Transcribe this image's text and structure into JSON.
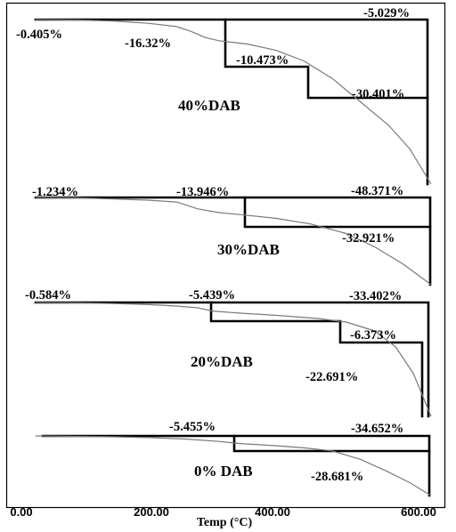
{
  "chart_data": {
    "type": "line",
    "xlabel": "Temp (°C)",
    "xlim": [
      0,
      600
    ],
    "x_ticks": [
      "0.00",
      "200.00",
      "400.00",
      "600.00"
    ],
    "series": [
      {
        "name": "40%DAB",
        "x": [
          40,
          100,
          150,
          200,
          240,
          260,
          280,
          300,
          340,
          380,
          420,
          460,
          500,
          540,
          570,
          600
        ],
        "y": [
          100,
          99.9,
          99.7,
          99.2,
          98.5,
          97.5,
          96.2,
          95.5,
          94.8,
          93.5,
          91.2,
          87.5,
          82.5,
          77.5,
          72.5,
          65
        ],
        "step_labels": [
          "-0.405%",
          "-16.32%",
          "-10.473%",
          "-30.401%",
          "-5.029%"
        ]
      },
      {
        "name": "30%DAB",
        "x": [
          40,
          100,
          150,
          200,
          240,
          270,
          300,
          330,
          380,
          430,
          480,
          520,
          560,
          600
        ],
        "y": [
          100,
          99.9,
          99.6,
          99.3,
          98.8,
          97,
          96,
          95.5,
          94.5,
          93,
          90.5,
          87,
          82.5,
          77
        ],
        "step_labels": [
          "-1.234%",
          "-13.946%",
          "-48.371%",
          "-32.921%"
        ]
      },
      {
        "name": "20%DAB",
        "x": [
          40,
          100,
          150,
          200,
          240,
          270,
          290,
          330,
          380,
          440,
          480,
          520,
          550,
          575,
          600
        ],
        "y": [
          100,
          99.9,
          99.7,
          99.4,
          99,
          98.5,
          97.6,
          97,
          96.4,
          95.5,
          94.5,
          92,
          87.5,
          80,
          68
        ],
        "step_labels": [
          "-0.584%",
          "-5.439%",
          "-33.402%",
          "-6.373%",
          "-22.691%"
        ]
      },
      {
        "name": "0% DAB",
        "x": [
          40,
          100,
          150,
          200,
          250,
          300,
          330,
          380,
          420,
          460,
          500,
          540,
          570,
          600
        ],
        "y": [
          100,
          99.9,
          99.8,
          99.6,
          99.3,
          98.7,
          98.2,
          97.7,
          97.2,
          96.5,
          94.5,
          91.5,
          89,
          86
        ],
        "step_labels": [
          "-5.455%",
          "-34.652%",
          "-28.681%"
        ]
      }
    ]
  }
}
